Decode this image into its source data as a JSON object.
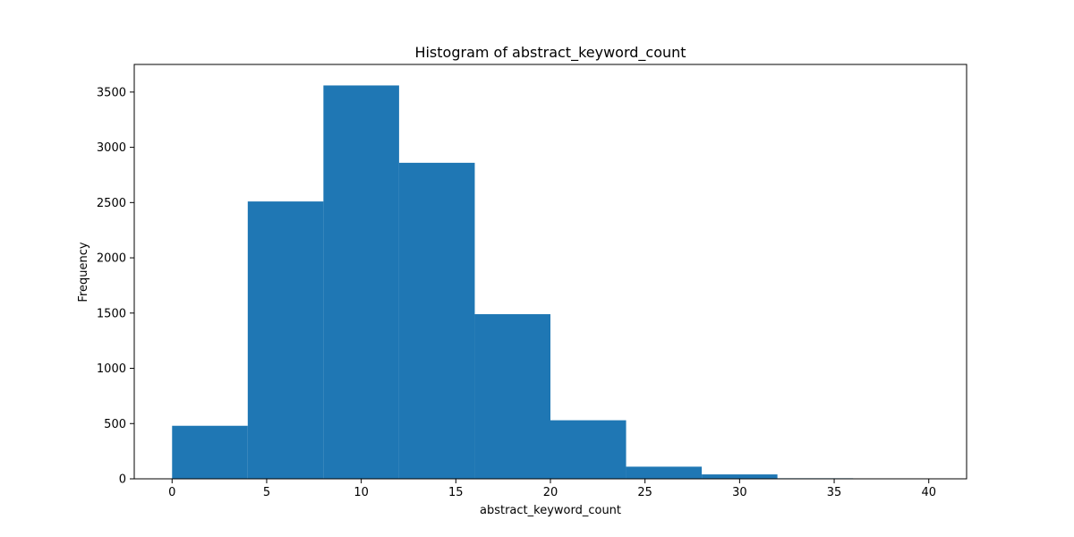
{
  "chart_data": {
    "type": "bar",
    "title": "Histogram of abstract_keyword_count",
    "xlabel": "abstract_keyword_count",
    "ylabel": "Frequency",
    "bin_edges": [
      0,
      4,
      8,
      12,
      16,
      20,
      24,
      28,
      32,
      36,
      40
    ],
    "values": [
      480,
      2510,
      3560,
      2860,
      1490,
      530,
      110,
      40,
      5,
      2
    ],
    "xlim": [
      -2,
      42
    ],
    "ylim": [
      0,
      3750
    ],
    "xticks": [
      0,
      5,
      10,
      15,
      20,
      25,
      30,
      35,
      40
    ],
    "yticks": [
      0,
      500,
      1000,
      1500,
      2000,
      2500,
      3000,
      3500
    ],
    "bar_color": "#1f77b4",
    "grid": false,
    "legend": false
  }
}
